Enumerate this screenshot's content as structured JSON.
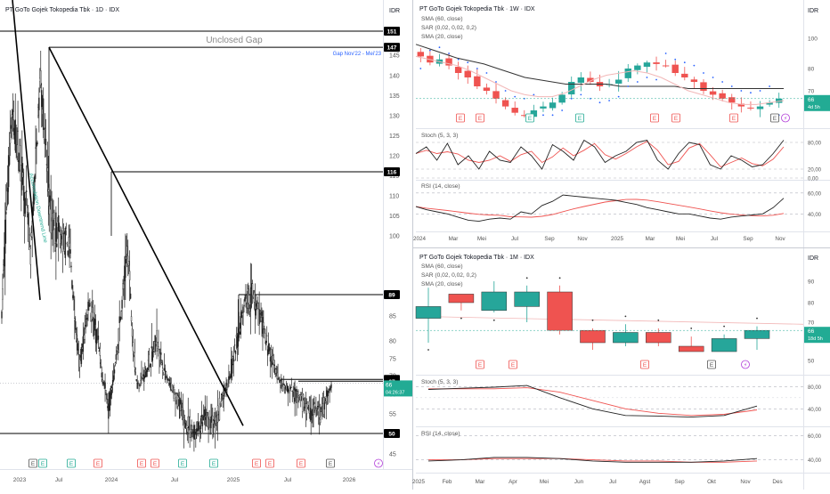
{
  "colors": {
    "up": "#26a69a",
    "down": "#ef5350",
    "sma60": "#333333",
    "sma20": "#f2b8b8",
    "sar": "#2962ff",
    "stoch_k": "#222222",
    "stoch_d": "#ef5350",
    "rsi": "#222222",
    "rsi_ma": "#ef5350",
    "price_tag": "#22ab94",
    "level_tag": "#000000",
    "gap_label": "#2962ff",
    "trend_label": "#22ab94",
    "grid": "#eeeeee",
    "div": "#e0e3eb"
  },
  "left": {
    "title": "PT GoTo Gojek Tokopedia Tbk · 1D · IDX",
    "currency": "IDR",
    "price_tag": "66",
    "price_timer": "04:26:37",
    "gap_title": "Unclosed Gap",
    "gap_sub": "Gap Nov'22 - Mei'23",
    "trend_label": "Accumulation Downtrend Line",
    "y_ticks": [
      "145",
      "140",
      "135",
      "130",
      "125",
      "120",
      "115",
      "110",
      "105",
      "100",
      "85",
      "80",
      "75",
      "70",
      "60",
      "55",
      "45"
    ],
    "level_tags": [
      "151",
      "147",
      "116",
      "89",
      "68",
      "67",
      "50"
    ],
    "x_ticks": [
      "2023",
      "Jul",
      "2024",
      "Jul",
      "2025",
      "Jul",
      "2026"
    ],
    "events": [
      {
        "type": "E",
        "color": "#555555"
      },
      {
        "type": "E",
        "color": "#22ab94"
      },
      {
        "type": "E",
        "color": "#22ab94"
      },
      {
        "type": "E",
        "color": "#ef5350"
      },
      {
        "type": "E",
        "color": "#ef5350"
      },
      {
        "type": "E",
        "color": "#ef5350"
      },
      {
        "type": "E",
        "color": "#22ab94"
      },
      {
        "type": "E",
        "color": "#22ab94"
      },
      {
        "type": "E",
        "color": "#ef5350"
      },
      {
        "type": "E",
        "color": "#ef5350"
      },
      {
        "type": "E",
        "color": "#ef5350"
      },
      {
        "type": "E",
        "color": "#555555"
      },
      {
        "type": "⚡",
        "color": "#b13bd8"
      }
    ]
  },
  "weekly": {
    "title": "PT GoTo Gojek Tokopedia Tbk · 1W · IDX",
    "currency": "IDR",
    "legend": [
      "SMA (60, close)",
      "SAR (0,02, 0,02, 0,2)",
      "SMA (20, close)"
    ],
    "price_tag": "66",
    "price_timer": "4d 5h",
    "y_ticks": [
      "100",
      "80",
      "70"
    ],
    "x_ticks": [
      "2024",
      "Mar",
      "Mei",
      "Jul",
      "Sep",
      "Nov",
      "2025",
      "Mar",
      "Mei",
      "Jul",
      "Sep",
      "Nov"
    ],
    "stoch_title": "Stoch (5, 3, 3)",
    "stoch_ticks": [
      "80,00",
      "20,00",
      "0,00"
    ],
    "rsi_title": "RSI (14, close)",
    "rsi_ticks": [
      "60,00",
      "40,00"
    ],
    "events": [
      {
        "type": "E",
        "color": "#ef5350"
      },
      {
        "type": "E",
        "color": "#ef5350"
      },
      {
        "type": "E",
        "color": "#22ab94"
      },
      {
        "type": "E",
        "color": "#22ab94"
      },
      {
        "type": "E",
        "color": "#ef5350"
      },
      {
        "type": "E",
        "color": "#ef5350"
      },
      {
        "type": "E",
        "color": "#ef5350"
      },
      {
        "type": "E",
        "color": "#555555"
      },
      {
        "type": "⚡",
        "color": "#b13bd8"
      }
    ]
  },
  "monthly": {
    "title": "PT GoTo Gojek Tokopedia Tbk · 1M · IDX",
    "currency": "IDR",
    "legend": [
      "SMA (60, close)",
      "SAR (0,02, 0,02, 0,2)",
      "SMA (20, close)"
    ],
    "price_tag": "66",
    "price_timer": "18d 5h",
    "y_ticks": [
      "90",
      "80",
      "70",
      "50"
    ],
    "x_ticks": [
      "2025",
      "Feb",
      "Mar",
      "Apr",
      "Mei",
      "Jun",
      "Jul",
      "Agst",
      "Sep",
      "Okt",
      "Nov",
      "Des"
    ],
    "stoch_title": "Stoch (5, 3, 3)",
    "stoch_ticks": [
      "80,00",
      "40,00"
    ],
    "rsi_title": "RSI (14, close)",
    "rsi_ticks": [
      "60,00",
      "40,00"
    ],
    "events": [
      {
        "type": "E",
        "color": "#ef5350"
      },
      {
        "type": "E",
        "color": "#ef5350"
      },
      {
        "type": "E",
        "color": "#ef5350"
      },
      {
        "type": "E",
        "color": "#555555"
      },
      {
        "type": "⚡",
        "color": "#b13bd8"
      }
    ]
  },
  "chart_data": [
    {
      "type": "candlestick",
      "title": "PT GoTo Gojek Tokopedia Tbk · 1D · IDX",
      "ylabel": "IDR",
      "ylim": [
        41,
        153
      ],
      "x_range": [
        "2023-01",
        "2026-03"
      ],
      "key_levels": [
        151,
        147,
        116,
        89,
        68,
        67,
        50
      ],
      "last_price": 66,
      "gap": {
        "label": "Unclosed Gap",
        "from": 147,
        "to": 151,
        "period": "Gap Nov'22 - Mei'23"
      },
      "trendlines": [
        {
          "name": "steep",
          "start": [
            "2022-12",
            152
          ],
          "end": [
            "2023-03",
            88
          ]
        },
        {
          "name": "accumulation-downtrend",
          "start": [
            "2023-04",
            147
          ],
          "end": [
            "2024-11",
            52
          ]
        }
      ],
      "monthly_path": [
        85,
        130,
        118,
        96,
        140,
        105,
        100,
        98,
        73,
        88,
        78,
        56,
        80,
        98,
        65,
        72,
        80,
        68,
        60,
        52,
        50,
        54,
        52,
        62,
        76,
        88,
        89,
        82,
        74,
        63,
        62,
        58,
        56,
        55,
        64
      ]
    },
    {
      "type": "candlestick",
      "title": "PT GoTo Gojek Tokopedia Tbk · 1W · IDX",
      "ylim": [
        57,
        110
      ],
      "x_ticks": [
        "2024",
        "Mar",
        "Mei",
        "Jul",
        "Sep",
        "Nov",
        "2025",
        "Mar",
        "Mei",
        "Jul",
        "Sep",
        "Nov"
      ],
      "close_path": [
        88,
        84,
        86,
        82,
        78,
        76,
        72,
        70,
        66,
        62,
        59,
        58,
        60,
        62,
        64,
        68,
        74,
        76,
        74,
        72,
        73,
        75,
        80,
        82,
        84,
        83,
        82,
        78,
        76,
        74,
        70,
        68,
        66,
        64,
        62,
        61,
        62,
        64,
        66
      ],
      "last_price": 66,
      "series": [
        {
          "name": "SMA (60, close)",
          "values": [
            96,
            93,
            90,
            87,
            85,
            83,
            80,
            78,
            76,
            75,
            74,
            73,
            73,
            73,
            73,
            72,
            72,
            72,
            72,
            72,
            71,
            71,
            71,
            71,
            71,
            71,
            71,
            71
          ]
        },
        {
          "name": "SMA (20, close)",
          "values": [
            88,
            86,
            84,
            82,
            79,
            76,
            73,
            70,
            68,
            67,
            67,
            69,
            72,
            75,
            77,
            78,
            79,
            78,
            76,
            73,
            70,
            68,
            66,
            64,
            63,
            63,
            64,
            65
          ]
        }
      ],
      "stoch": {
        "k": [
          55,
          70,
          40,
          78,
          30,
          50,
          20,
          60,
          40,
          35,
          70,
          50,
          20,
          75,
          60,
          40,
          85,
          70,
          35,
          50,
          60,
          80,
          85,
          40,
          20,
          55,
          80,
          75,
          30,
          20,
          50,
          40,
          25,
          30,
          55,
          85
        ],
        "d_lag": 1
      },
      "rsi": {
        "values": [
          47,
          44,
          42,
          40,
          37,
          34,
          33,
          35,
          36,
          35,
          42,
          40,
          48,
          52,
          58,
          57,
          56,
          55,
          54,
          53,
          51,
          49,
          46,
          44,
          42,
          40,
          40,
          38,
          36,
          35,
          37,
          38,
          39,
          40,
          46,
          55
        ]
      }
    },
    {
      "type": "candlestick",
      "title": "PT GoTo Gojek Tokopedia Tbk · 1M · IDX",
      "ylim": [
        44,
        96
      ],
      "categories": [
        "Jan",
        "Feb",
        "Mar",
        "Apr",
        "Mei",
        "Jun",
        "Jul",
        "Agst",
        "Sep",
        "Okt",
        "Nov",
        "Des"
      ],
      "ohlc": [
        [
          72,
          87,
          60,
          78
        ],
        [
          84,
          84,
          76,
          80
        ],
        [
          76,
          90,
          75,
          85
        ],
        [
          78,
          88,
          70,
          85
        ],
        [
          85,
          88,
          64,
          66
        ],
        [
          66,
          67,
          56,
          60
        ],
        [
          60,
          69,
          58,
          65
        ],
        [
          65,
          67,
          58,
          60
        ],
        [
          58,
          63,
          55,
          55
        ],
        [
          55,
          64,
          55,
          62
        ],
        [
          62,
          68,
          56,
          66
        ]
      ],
      "last_price": 66,
      "stoch": {
        "k": [
          75,
          77,
          79,
          82,
          60,
          40,
          28,
          27,
          25,
          28,
          45
        ],
        "d": [
          76,
          76,
          76,
          78,
          70,
          55,
          40,
          32,
          28,
          30,
          38
        ]
      },
      "rsi": {
        "values": [
          39,
          40,
          42,
          42,
          41,
          39,
          38,
          38,
          38,
          39,
          41
        ],
        "ma": [
          40,
          40,
          41,
          41,
          41,
          40,
          39,
          39,
          38,
          38,
          39
        ]
      }
    }
  ]
}
